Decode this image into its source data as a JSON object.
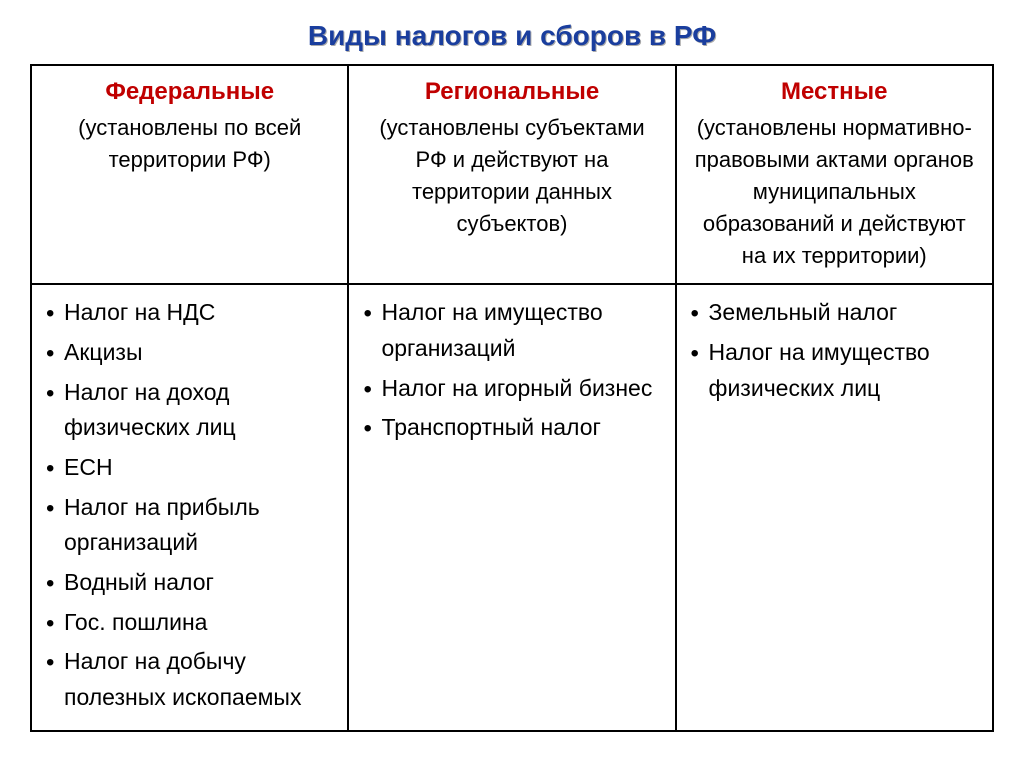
{
  "title": "Виды налогов и сборов в РФ",
  "title_color": "#1a3e9e",
  "header_color": "#c00000",
  "border_color": "#000000",
  "font_sizes": {
    "title": 28,
    "header": 24,
    "subheader": 22,
    "list": 23
  },
  "columns": {
    "col1": {
      "header": "Федеральные",
      "sub": "(установлены по всей территории РФ)",
      "items": [
        "Налог на НДС",
        "Акцизы",
        "Налог на доход физических лиц",
        "ЕСН",
        "Налог на прибыль организаций",
        "Водный налог",
        "Гос. пошлина",
        "Налог на добычу полезных ископаемых"
      ]
    },
    "col2": {
      "header": "Региональные",
      "sub": "(установлены субъектами РФ и действуют на территории данных субъектов)",
      "items": [
        "Налог на имущество организаций",
        "Налог на игорный бизнес",
        "Транспортный налог"
      ]
    },
    "col3": {
      "header": "Местные",
      "sub": "(установлены нормативно-правовыми актами органов муниципальных образований и действуют на их территории)",
      "items": [
        "Земельный налог",
        "Налог на имущество физических лиц"
      ]
    }
  }
}
